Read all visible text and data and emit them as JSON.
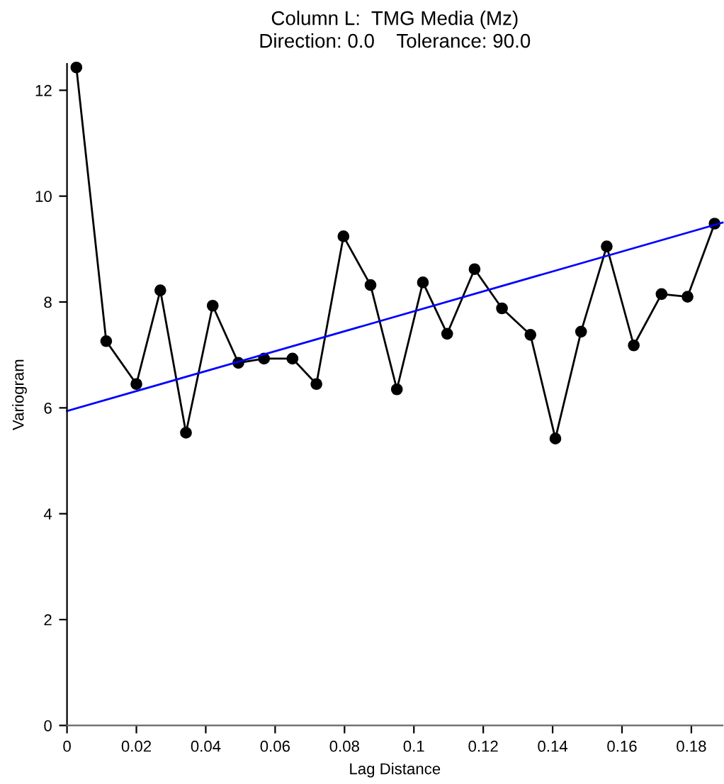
{
  "chart_data": {
    "type": "line",
    "title": "Column L:  TMG Media (Mz)",
    "subtitle": "Direction: 0.0    Tolerance: 90.0",
    "xlabel": "Lag Distance",
    "ylabel": "Variogram",
    "xlim": [
      0,
      0.189
    ],
    "ylim": [
      0,
      12.5
    ],
    "xticks": [
      0,
      0.02,
      0.04,
      0.06,
      0.08,
      0.1,
      0.12,
      0.14,
      0.16,
      0.18
    ],
    "yticks": [
      0,
      2,
      4,
      6,
      8,
      10,
      12
    ],
    "grid": false,
    "legend": false,
    "series": [
      {
        "color": "#000000",
        "marker": "circle",
        "x": [
          0.0027,
          0.0113,
          0.02,
          0.0269,
          0.0343,
          0.042,
          0.0494,
          0.0568,
          0.065,
          0.0719,
          0.0797,
          0.0875,
          0.0951,
          0.1026,
          0.1096,
          0.1175,
          0.1254,
          0.1336,
          0.1408,
          0.1482,
          0.1556,
          0.1634,
          0.1714,
          0.1789,
          0.1867
        ],
        "values": [
          12.43,
          7.26,
          6.45,
          8.22,
          5.53,
          7.93,
          6.85,
          6.93,
          6.93,
          6.45,
          9.24,
          8.32,
          6.35,
          8.37,
          7.4,
          8.62,
          7.88,
          7.38,
          5.42,
          7.44,
          9.05,
          7.18,
          8.15,
          8.1,
          9.48
        ]
      },
      {
        "color": "#0000ff",
        "marker": "none",
        "x": [
          0,
          0.189
        ],
        "values": [
          5.94,
          9.5
        ]
      }
    ]
  }
}
